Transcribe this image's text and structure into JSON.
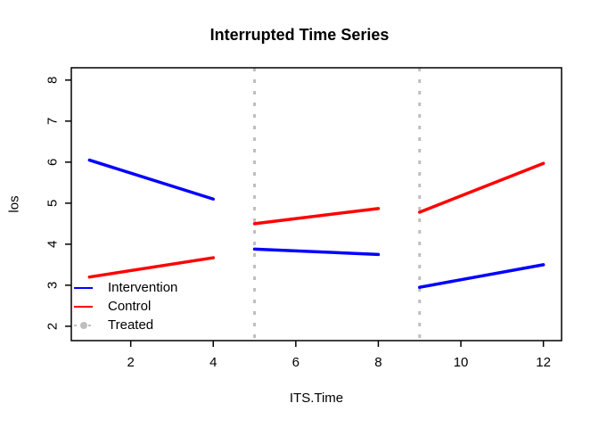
{
  "title": "Interrupted Time Series",
  "colors": {
    "intervention_blue": "#0000FF",
    "control_red": "#FF0000",
    "treated_gray": "#BEBEBE",
    "axis_black": "#000000",
    "background": "#FFFFFF"
  },
  "chart_data": {
    "type": "line",
    "title": "Interrupted Time Series",
    "xlabel": "ITS.Time",
    "ylabel": "los",
    "xlim": [
      0.56,
      12.44
    ],
    "ylim": [
      1.65,
      8.3
    ],
    "xticks": [
      2,
      4,
      6,
      8,
      10,
      12
    ],
    "yticks": [
      2,
      3,
      4,
      5,
      6,
      7,
      8
    ],
    "grid": false,
    "legend_position": "bottom-left",
    "series": [
      {
        "name": "Intervention",
        "color": "#0000FF",
        "style": "solid",
        "segments": [
          {
            "x": [
              1,
              4
            ],
            "y": [
              6.05,
              5.1
            ]
          },
          {
            "x": [
              5,
              8
            ],
            "y": [
              3.88,
              3.75
            ]
          },
          {
            "x": [
              9,
              12
            ],
            "y": [
              2.95,
              3.5
            ]
          }
        ]
      },
      {
        "name": "Control",
        "color": "#FF0000",
        "style": "solid",
        "segments": [
          {
            "x": [
              1,
              4
            ],
            "y": [
              3.2,
              3.67
            ]
          },
          {
            "x": [
              5,
              8
            ],
            "y": [
              4.5,
              4.87
            ]
          },
          {
            "x": [
              9,
              12
            ],
            "y": [
              4.78,
              5.97
            ]
          }
        ]
      },
      {
        "name": "Treated",
        "color": "#BEBEBE",
        "style": "dotted",
        "vlines": [
          5,
          9
        ]
      }
    ],
    "legend": [
      {
        "label": "Intervention",
        "color": "#0000FF",
        "line": "solid",
        "marker": "none"
      },
      {
        "label": "Control",
        "color": "#FF0000",
        "line": "solid",
        "marker": "none"
      },
      {
        "label": "Treated",
        "color": "#BEBEBE",
        "line": "dotted",
        "marker": "dot"
      }
    ]
  }
}
